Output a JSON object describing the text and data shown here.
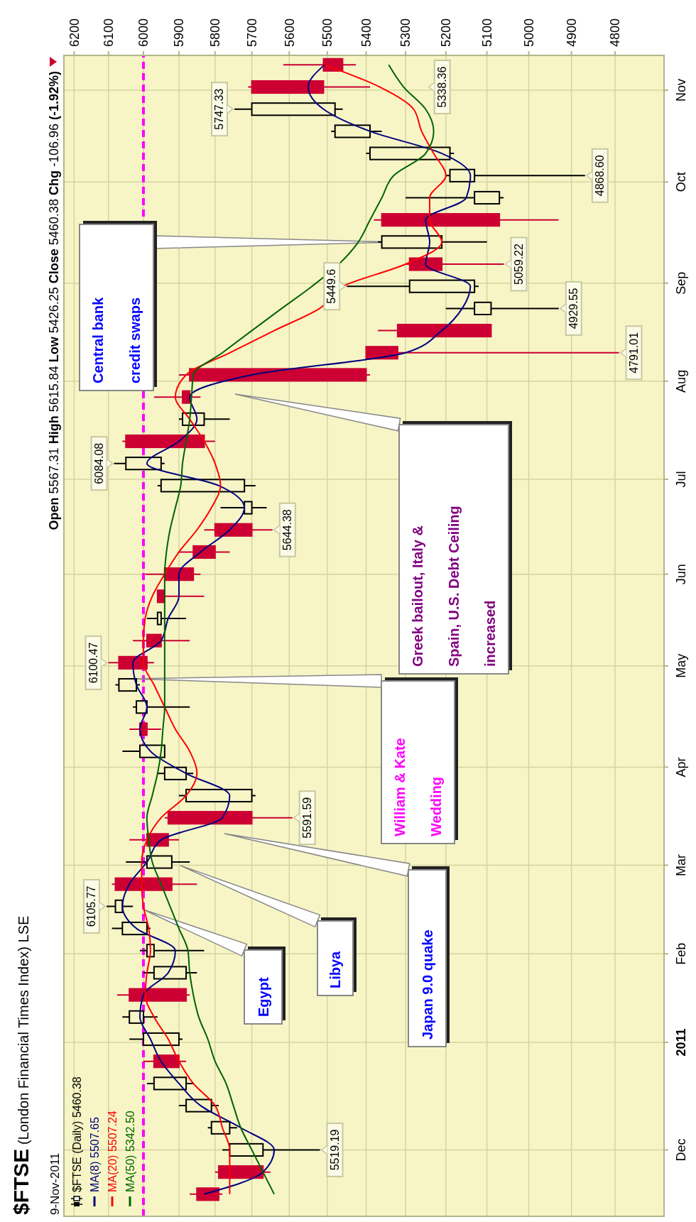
{
  "chart_data": {
    "type": "candlestick",
    "title": "$FTSE (London Financial Times Index) LSE",
    "subtitle": "9-Nov-2011",
    "x": [
      "2010-11-17",
      "2010-11-24",
      "2010-12-01",
      "2010-12-08",
      "2010-12-15",
      "2010-12-22",
      "2010-12-29",
      "2011-01-05",
      "2011-01-12",
      "2011-01-19",
      "2011-01-26",
      "2011-02-02",
      "2011-02-09",
      "2011-02-16",
      "2011-02-23",
      "2011-03-02",
      "2011-03-09",
      "2011-03-16",
      "2011-03-23",
      "2011-03-30",
      "2011-04-06",
      "2011-04-13",
      "2011-04-20",
      "2011-04-27",
      "2011-05-04",
      "2011-05-11",
      "2011-05-18",
      "2011-05-25",
      "2011-06-01",
      "2011-06-08",
      "2011-06-15",
      "2011-06-22",
      "2011-06-29",
      "2011-07-06",
      "2011-07-13",
      "2011-07-20",
      "2011-07-27",
      "2011-08-03",
      "2011-08-10",
      "2011-08-17",
      "2011-08-24",
      "2011-08-31",
      "2011-09-07",
      "2011-09-14",
      "2011-09-21",
      "2011-09-28",
      "2011-10-05",
      "2011-10-12",
      "2011-10-19",
      "2011-10-26",
      "2011-11-02",
      "2011-11-09"
    ],
    "series": [
      {
        "name": "$FTSE (Daily) 5460.38",
        "ohlc": [
          [
            5850,
            5870,
            5780,
            5790
          ],
          [
            5790,
            5800,
            5650,
            5670
          ],
          [
            5670,
            5780,
            5519.19,
            5760
          ],
          [
            5760,
            5820,
            5740,
            5810
          ],
          [
            5810,
            5900,
            5790,
            5880
          ],
          [
            5880,
            5990,
            5860,
            5970
          ],
          [
            5970,
            6000,
            5880,
            5900
          ],
          [
            5900,
            6040,
            5890,
            6000
          ],
          [
            6000,
            6060,
            5960,
            6040
          ],
          [
            6040,
            6075,
            5870,
            5880
          ],
          [
            5880,
            6000,
            5850,
            5970
          ],
          [
            5970,
            6010,
            5830,
            5990
          ],
          [
            5990,
            6090,
            5980,
            6060
          ],
          [
            6060,
            6105.77,
            6030,
            6080
          ],
          [
            6080,
            6090,
            5850,
            5920
          ],
          [
            5920,
            6050,
            5870,
            5990
          ],
          [
            5990,
            6040,
            5900,
            5930
          ],
          [
            5930,
            5940,
            5591.59,
            5700
          ],
          [
            5700,
            5900,
            5690,
            5880
          ],
          [
            5880,
            5960,
            5860,
            5940
          ],
          [
            5940,
            6060,
            5940,
            6010
          ],
          [
            6010,
            6040,
            5950,
            5990
          ],
          [
            5990,
            6030,
            5870,
            6020
          ],
          [
            6020,
            6080,
            6010,
            6070
          ],
          [
            6070,
            6100.47,
            5970,
            5990
          ],
          [
            5990,
            6030,
            5870,
            5950
          ],
          [
            5950,
            5990,
            5880,
            5960
          ],
          [
            5960,
            5960,
            5830,
            5940
          ],
          [
            5940,
            5995,
            5840,
            5860
          ],
          [
            5860,
            5900,
            5760,
            5800
          ],
          [
            5800,
            5830,
            5644.38,
            5700
          ],
          [
            5700,
            5785,
            5660,
            5720
          ],
          [
            5720,
            5960,
            5690,
            5950
          ],
          [
            5950,
            6084.08,
            5940,
            6050
          ],
          [
            6050,
            6060,
            5800,
            5830
          ],
          [
            5830,
            5900,
            5760,
            5890
          ],
          [
            5890,
            5970,
            5840,
            5870
          ],
          [
            5870,
            5900,
            5390,
            5400
          ],
          [
            5400,
            5400,
            4791.01,
            5320
          ],
          [
            5320,
            5370,
            5090,
            5090
          ],
          [
            5090,
            5200,
            4929.55,
            5130
          ],
          [
            5130,
            5449.6,
            5120,
            5290
          ],
          [
            5290,
            5300,
            5059.22,
            5210
          ],
          [
            5210,
            5370,
            5100,
            5360
          ],
          [
            5360,
            5380,
            4930,
            5070
          ],
          [
            5070,
            5300,
            5060,
            5130
          ],
          [
            5130,
            5200,
            4868.6,
            5190
          ],
          [
            5190,
            5400,
            5180,
            5390
          ],
          [
            5390,
            5490,
            5360,
            5480
          ],
          [
            5480,
            5747.33,
            5460,
            5700
          ],
          [
            5700,
            5710,
            5390,
            5510
          ],
          [
            5510,
            5615.84,
            5426.25,
            5460.38
          ]
        ],
        "colors": [
          "#cc0033",
          "#cc0033",
          "#000000",
          "#000000",
          "#000000",
          "#000000",
          "#cc0033",
          "#000000",
          "#000000",
          "#cc0033",
          "#000000",
          "#000000",
          "#000000",
          "#000000",
          "#cc0033",
          "#000000",
          "#cc0033",
          "#cc0033",
          "#000000",
          "#000000",
          "#000000",
          "#cc0033",
          "#000000",
          "#000000",
          "#cc0033",
          "#cc0033",
          "#000000",
          "#cc0033",
          "#cc0033",
          "#cc0033",
          "#cc0033",
          "#000000",
          "#000000",
          "#000000",
          "#cc0033",
          "#000000",
          "#cc0033",
          "#cc0033",
          "#cc0033",
          "#cc0033",
          "#000000",
          "#000000",
          "#cc0033",
          "#000000",
          "#cc0033",
          "#000000",
          "#000000",
          "#000000",
          "#000000",
          "#000000",
          "#cc0033",
          "#cc0033"
        ]
      },
      {
        "name": "MA(8) 5507.65",
        "type": "line",
        "color": "#000080",
        "values": [
          5830,
          5670,
          5640,
          5730,
          5840,
          5900,
          5950,
          5980,
          6010,
          6000,
          5930,
          5910,
          6020,
          6060,
          6040,
          5990,
          5950,
          5780,
          5760,
          5880,
          5980,
          6010,
          5990,
          6020,
          6030,
          5950,
          5930,
          5900,
          5900,
          5840,
          5760,
          5720,
          5790,
          5990,
          5900,
          5850,
          5870,
          5700,
          5300,
          5210,
          5160,
          5140,
          5250,
          5240,
          5250,
          5150,
          5140,
          5210,
          5390,
          5510,
          5550,
          5507.65
        ]
      },
      {
        "name": "MA(20) 5507.24",
        "type": "line",
        "color": "#ff0000",
        "values": [
          5760,
          5760,
          5760,
          5780,
          5800,
          5860,
          5900,
          5930,
          5970,
          5995,
          5990,
          5980,
          5985,
          6000,
          6005,
          6005,
          5990,
          5950,
          5880,
          5850,
          5870,
          5910,
          5940,
          5970,
          6000,
          6000,
          5995,
          5975,
          5940,
          5900,
          5850,
          5810,
          5785,
          5800,
          5830,
          5870,
          5910,
          5880,
          5760,
          5640,
          5520,
          5460,
          5300,
          5210,
          5240,
          5240,
          5200,
          5230,
          5260,
          5280,
          5365,
          5507.24
        ]
      },
      {
        "name": "MA(50) 5342.50",
        "type": "line",
        "color": "#006400",
        "values": [
          5640,
          5670,
          5700,
          5730,
          5750,
          5770,
          5800,
          5820,
          5845,
          5860,
          5870,
          5875,
          5900,
          5925,
          5950,
          5975,
          5985,
          5990,
          5975,
          5960,
          5950,
          5945,
          5940,
          5940,
          5940,
          5940,
          5940,
          5940,
          5940,
          5935,
          5925,
          5910,
          5895,
          5890,
          5880,
          5870,
          5865,
          5860,
          5780,
          5700,
          5620,
          5540,
          5470,
          5420,
          5390,
          5360,
          5330,
          5250,
          5230,
          5250,
          5305,
          5342.5
        ]
      }
    ],
    "orientation": "horizontal",
    "ylim": [
      "2010-11-10",
      "2011-11-12"
    ],
    "yticks": [
      {
        "value": "2010-12-01",
        "label": "Dec"
      },
      {
        "value": "2011-01-04",
        "label": "2011"
      },
      {
        "value": "2011-02-01",
        "label": "Feb"
      },
      {
        "value": "2011-03-01",
        "label": "Mar"
      },
      {
        "value": "2011-04-01",
        "label": "Apr"
      },
      {
        "value": "2011-05-03",
        "label": "May"
      },
      {
        "value": "2011-06-01",
        "label": "Jun"
      },
      {
        "value": "2011-07-01",
        "label": "Jul"
      },
      {
        "value": "2011-08-01",
        "label": "Aug"
      },
      {
        "value": "2011-09-01",
        "label": "Sep"
      },
      {
        "value": "2011-10-03",
        "label": "Oct"
      },
      {
        "value": "2011-11-01",
        "label": "Nov"
      }
    ],
    "xlim": [
      6230,
      4690
    ],
    "xticks": [
      6200,
      6100,
      6000,
      5900,
      5800,
      5700,
      5600,
      5500,
      5400,
      5300,
      5200,
      5100,
      5000,
      4900,
      4800
    ],
    "log": "x",
    "grid": true,
    "legend": "bottom left",
    "ref_lines": [
      {
        "axis": "x",
        "value": 6000,
        "color": "#ff00ff",
        "line_style": "dashed"
      }
    ],
    "annotations": [
      "Open 5567.31 High 5615.84 Low 5426.25 Close 5460.38 Chg -106.96 (-1.92%)",
      "Egypt",
      "Libya",
      "Japan 9.0 quake",
      "William & Kate Wedding",
      "Greek bailout, Italy & Spain, U.S. Debt Ceiling increased",
      "Central bank credit swaps",
      "5519.19",
      "6105.77",
      "5591.59",
      "6100.47",
      "5644.38",
      "6084.08",
      "4791.01",
      "4929.55",
      "5449.6",
      "5059.22",
      "4868.60",
      "5747.33",
      "5338.36"
    ]
  }
}
